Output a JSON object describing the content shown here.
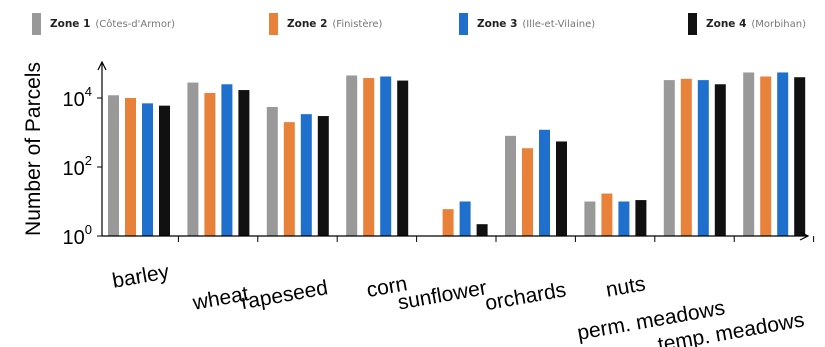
{
  "chart_data": {
    "type": "bar",
    "ylabel": "Number of Parcels",
    "yscale": "log",
    "ylim": [
      1,
      200000
    ],
    "yticks": [
      {
        "value": 1,
        "base": "10",
        "exp": "0"
      },
      {
        "value": 100,
        "base": "10",
        "exp": "2"
      },
      {
        "value": 10000,
        "base": "10",
        "exp": "4"
      }
    ],
    "categories": [
      "barley",
      "wheat",
      "rapeseed",
      "corn",
      "sunflower",
      "orchards",
      "nuts",
      "perm. meadows",
      "temp. meadows"
    ],
    "series": [
      {
        "name": "Zone 1",
        "note": "(Côtes-d'Armor)",
        "color": "#999999",
        "values": [
          12000,
          28000,
          5500,
          45000,
          null,
          800,
          10,
          33000,
          55000
        ]
      },
      {
        "name": "Zone 2",
        "note": "(Finistère)",
        "color": "#e8823a",
        "values": [
          10000,
          14000,
          2000,
          38000,
          6,
          350,
          17,
          36000,
          42000
        ]
      },
      {
        "name": "Zone 3",
        "note": "(Ille-et-Vilaine)",
        "color": "#1f6fcc",
        "values": [
          7000,
          25000,
          3400,
          42000,
          10,
          1200,
          10,
          33000,
          55000
        ]
      },
      {
        "name": "Zone 4",
        "note": "(Morbihan)",
        "color": "#111111",
        "values": [
          6000,
          17000,
          3000,
          32000,
          2.2,
          550,
          11,
          25000,
          40000
        ]
      }
    ],
    "legend_position": "top",
    "grid": false
  }
}
